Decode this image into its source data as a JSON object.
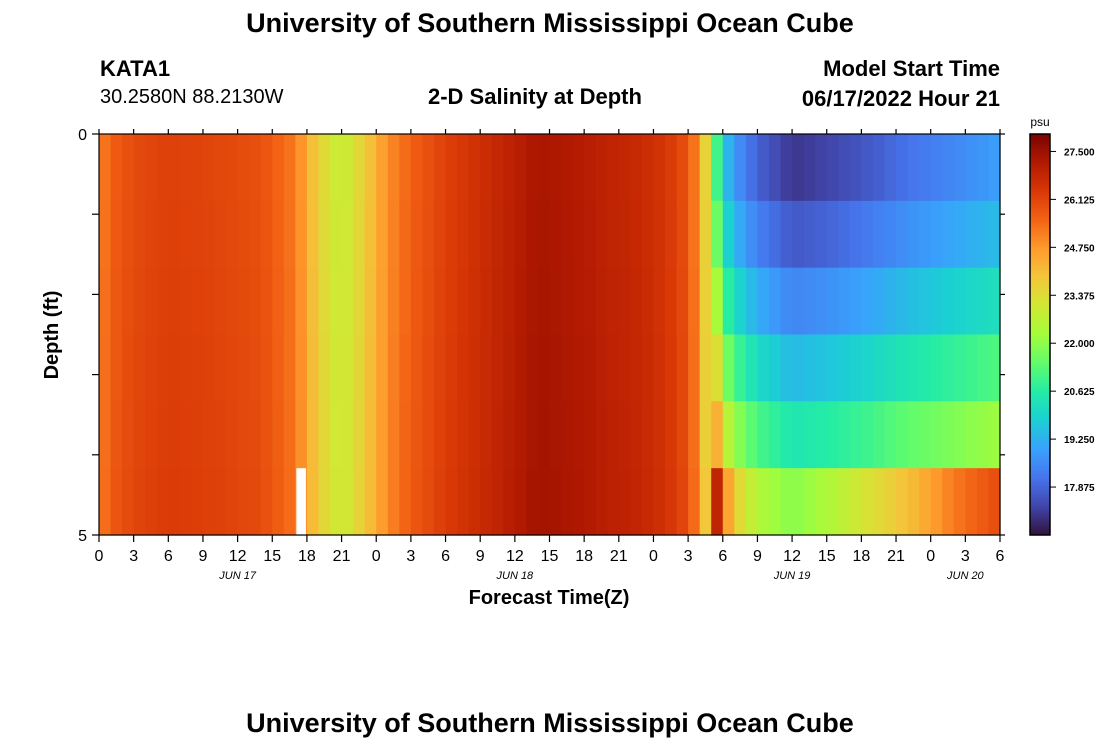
{
  "header": {
    "title": "University of Southern Mississippi Ocean Cube",
    "station_id": "KATA1",
    "station_coords": "30.2580N  88.2130W",
    "plot_title": "2-D Salinity at Depth",
    "model_start_label": "Model Start Time",
    "model_start_value": "06/17/2022 Hour 21"
  },
  "footer": {
    "title": "University of Southern Mississippi Ocean Cube"
  },
  "colors": {
    "colormap": [
      "#30123b",
      "#4145ab",
      "#4675ed",
      "#39a2fc",
      "#1bcfd4",
      "#24eca6",
      "#61fc6c",
      "#a4fc3b",
      "#d1e834",
      "#f3c63a",
      "#fe9b2d",
      "#f36315",
      "#d93806",
      "#b11901",
      "#7a0402"
    ],
    "missing_marker": "#ffffff"
  },
  "chart_data": {
    "type": "heatmap",
    "title": "2-D Salinity at Depth",
    "xlabel": "Forecast Time(Z)",
    "ylabel": "Depth (ft)",
    "units": "psu",
    "x_hours": [
      0,
      78
    ],
    "y_depth_range": [
      0,
      5
    ],
    "y_tick_labels": [
      "0",
      "5"
    ],
    "x_tick_labels": [
      "0",
      "3",
      "6",
      "9",
      "12",
      "15",
      "18",
      "21",
      "0",
      "3",
      "6",
      "9",
      "12",
      "15",
      "18",
      "21",
      "0",
      "3",
      "6",
      "9",
      "12",
      "15",
      "18",
      "21",
      "0",
      "3",
      "6"
    ],
    "date_labels": [
      {
        "label": "JUN 17",
        "hour": 12
      },
      {
        "label": "JUN 18",
        "hour": 36
      },
      {
        "label": "JUN 19",
        "hour": 60
      },
      {
        "label": "JUN 20",
        "hour": 75
      }
    ],
    "colorbar": {
      "min": 16.5,
      "max": 28.0,
      "tick_labels": [
        "27.500",
        "26.125",
        "24.750",
        "23.375",
        "22.000",
        "20.625",
        "19.250",
        "17.875"
      ],
      "tick_values": [
        27.5,
        26.125,
        24.75,
        23.375,
        22.0,
        20.625,
        19.25,
        17.875
      ]
    },
    "time_profile": {
      "hours": [
        0,
        1,
        3,
        6,
        10,
        14,
        17,
        19,
        21,
        23,
        25,
        27,
        30,
        33,
        36,
        38,
        40,
        42,
        44,
        46,
        48,
        50,
        51,
        52,
        52.5,
        53,
        53.5,
        54,
        55,
        57,
        60,
        63,
        66,
        70,
        74,
        78
      ],
      "surface": [
        25.0,
        25.6,
        26.0,
        26.2,
        26.1,
        25.9,
        25.2,
        23.6,
        22.8,
        23.7,
        24.9,
        25.6,
        26.2,
        26.6,
        27.0,
        27.3,
        27.2,
        27.1,
        26.9,
        26.8,
        26.6,
        26.2,
        25.8,
        24.8,
        23.6,
        22.5,
        21.0,
        19.8,
        18.8,
        17.8,
        17.1,
        17.3,
        17.6,
        18.1,
        18.5,
        18.9
      ],
      "layer_offsets": [
        0.0,
        0.55,
        1.35,
        2.3,
        3.3,
        4.3
      ],
      "bottom_layer_extra": [
        0,
        0,
        0,
        0,
        0,
        0,
        0,
        0,
        0,
        0,
        0,
        0,
        0,
        0,
        0,
        0,
        0,
        0,
        0,
        0,
        0,
        0,
        0,
        0.3,
        0.8,
        1.2,
        1.6,
        1.2,
        0.6,
        0.4,
        0.5,
        0.8,
        1.2,
        1.6,
        2.4,
        2.8
      ]
    },
    "missing_value_hour": 17,
    "missing_value_layer": 5
  }
}
